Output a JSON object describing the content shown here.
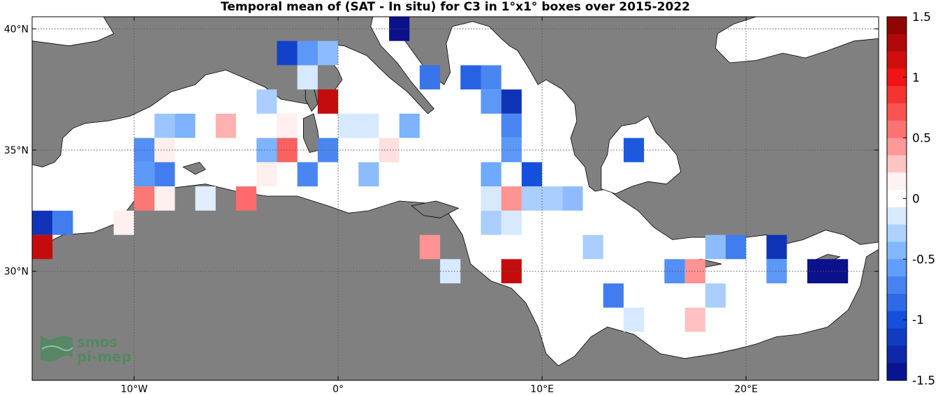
{
  "chart_data": {
    "type": "heatmap",
    "title": "Temporal mean of (SAT - In situ) for C3 in 1°x1° boxes over 2015-2022",
    "xlim": [
      -15,
      26.5
    ],
    "ylim": [
      25.5,
      40.5
    ],
    "x_ticks": [
      {
        "value": -10,
        "label": "10°W"
      },
      {
        "value": 0,
        "label": "0°"
      },
      {
        "value": 10,
        "label": "10°E"
      },
      {
        "value": 20,
        "label": "20°E"
      }
    ],
    "y_ticks": [
      {
        "value": 40,
        "label": "40°N"
      },
      {
        "value": 35,
        "label": "35°N"
      },
      {
        "value": 30,
        "label": "30°N"
      }
    ],
    "grid": "dotted",
    "colorbar": {
      "min": -1.5,
      "max": 1.5,
      "ticks": [
        {
          "value": 1.5,
          "label": "1.5"
        },
        {
          "value": 1,
          "label": "1"
        },
        {
          "value": 0.5,
          "label": "0.5"
        },
        {
          "value": 0,
          "label": "0"
        },
        {
          "value": -0.5,
          "label": "-0.5"
        },
        {
          "value": -1,
          "label": "-1"
        },
        {
          "value": -1.5,
          "label": "-1.5"
        }
      ]
    },
    "cells": [
      {
        "lon": 3,
        "lat": 40,
        "value": -1.45
      },
      {
        "lon": -2.5,
        "lat": 39,
        "value": -1.1
      },
      {
        "lon": -1.5,
        "lat": 39,
        "value": -0.6
      },
      {
        "lon": -0.5,
        "lat": 39,
        "value": -0.4
      },
      {
        "lon": 4.5,
        "lat": 38,
        "value": -0.8
      },
      {
        "lon": 6.5,
        "lat": 38,
        "value": -0.9
      },
      {
        "lon": 7.5,
        "lat": 38,
        "value": -0.7
      },
      {
        "lon": -1.5,
        "lat": 38,
        "value": -0.15
      },
      {
        "lon": -3.5,
        "lat": 37,
        "value": -0.3
      },
      {
        "lon": -0.5,
        "lat": 37,
        "value": 1.2
      },
      {
        "lon": 7.5,
        "lat": 37,
        "value": -0.6
      },
      {
        "lon": 8.5,
        "lat": 37,
        "value": -1.2
      },
      {
        "lon": -8.5,
        "lat": 36,
        "value": -0.35
      },
      {
        "lon": -7.5,
        "lat": 36,
        "value": -0.45
      },
      {
        "lon": -5.5,
        "lat": 36,
        "value": 0.35
      },
      {
        "lon": -2.5,
        "lat": 36,
        "value": 0.15
      },
      {
        "lon": 0.5,
        "lat": 36,
        "value": -0.15
      },
      {
        "lon": 1.5,
        "lat": 36,
        "value": -0.15
      },
      {
        "lon": 3.5,
        "lat": 36,
        "value": -0.45
      },
      {
        "lon": 8.5,
        "lat": 36,
        "value": -0.7
      },
      {
        "lon": -9.5,
        "lat": 35,
        "value": -0.65
      },
      {
        "lon": -8.5,
        "lat": 35,
        "value": 0.15
      },
      {
        "lon": -3.5,
        "lat": 35,
        "value": -0.45
      },
      {
        "lon": -2.5,
        "lat": 35,
        "value": 0.65
      },
      {
        "lon": -0.5,
        "lat": 35,
        "value": -0.7
      },
      {
        "lon": 2.5,
        "lat": 35,
        "value": 0.2
      },
      {
        "lon": 8.5,
        "lat": 35,
        "value": -0.6
      },
      {
        "lon": 14.5,
        "lat": 35,
        "value": -0.95
      },
      {
        "lon": -9.5,
        "lat": 34,
        "value": -0.6
      },
      {
        "lon": -8.5,
        "lat": 34,
        "value": -0.75
      },
      {
        "lon": -3.5,
        "lat": 34,
        "value": 0.15
      },
      {
        "lon": -1.5,
        "lat": 34,
        "value": -0.7
      },
      {
        "lon": 1.5,
        "lat": 34,
        "value": -0.4
      },
      {
        "lon": 7.5,
        "lat": 34,
        "value": -0.5
      },
      {
        "lon": 9.5,
        "lat": 34,
        "value": -1.0
      },
      {
        "lon": -9.5,
        "lat": 33,
        "value": 0.55
      },
      {
        "lon": -8.5,
        "lat": 33,
        "value": 0.15
      },
      {
        "lon": -6.5,
        "lat": 33,
        "value": -0.12
      },
      {
        "lon": -4.5,
        "lat": 33,
        "value": 0.6
      },
      {
        "lon": 7.5,
        "lat": 33,
        "value": -0.15
      },
      {
        "lon": 8.5,
        "lat": 33,
        "value": 0.45
      },
      {
        "lon": 9.5,
        "lat": 33,
        "value": -0.3
      },
      {
        "lon": 10.5,
        "lat": 33,
        "value": -0.3
      },
      {
        "lon": 11.5,
        "lat": 33,
        "value": -0.4
      },
      {
        "lon": -14.5,
        "lat": 32,
        "value": -1.2
      },
      {
        "lon": -13.5,
        "lat": 32,
        "value": -0.75
      },
      {
        "lon": -10.5,
        "lat": 32,
        "value": 0.15
      },
      {
        "lon": 7.5,
        "lat": 32,
        "value": -0.3
      },
      {
        "lon": 8.5,
        "lat": 32,
        "value": -0.15
      },
      {
        "lon": -14.5,
        "lat": 31,
        "value": 1.2
      },
      {
        "lon": 4.5,
        "lat": 31,
        "value": 0.45
      },
      {
        "lon": 12.5,
        "lat": 31,
        "value": -0.3
      },
      {
        "lon": 18.5,
        "lat": 31,
        "value": -0.4
      },
      {
        "lon": 19.5,
        "lat": 31,
        "value": -0.75
      },
      {
        "lon": 21.5,
        "lat": 31,
        "value": -1.2
      },
      {
        "lon": 5.5,
        "lat": 30,
        "value": -0.15
      },
      {
        "lon": 8.5,
        "lat": 30,
        "value": 1.2
      },
      {
        "lon": 16.5,
        "lat": 30,
        "value": -0.65
      },
      {
        "lon": 17.5,
        "lat": 30,
        "value": 0.45
      },
      {
        "lon": 21.5,
        "lat": 30,
        "value": -0.6
      },
      {
        "lon": 23.5,
        "lat": 30,
        "value": -1.45
      },
      {
        "lon": 24.5,
        "lat": 30,
        "value": -1.45
      },
      {
        "lon": 13.5,
        "lat": 29,
        "value": -0.75
      },
      {
        "lon": 18.5,
        "lat": 29,
        "value": -0.3
      },
      {
        "lon": 14.5,
        "lat": 28,
        "value": -0.15
      },
      {
        "lon": 17.5,
        "lat": 28,
        "value": 0.3
      }
    ]
  },
  "colors": {
    "land": "#808080",
    "sea": "#ffffff",
    "frame": "#000000",
    "watermark": "#4a8a5c"
  },
  "watermark": {
    "line1": "smos",
    "line2": "pi-mep"
  }
}
